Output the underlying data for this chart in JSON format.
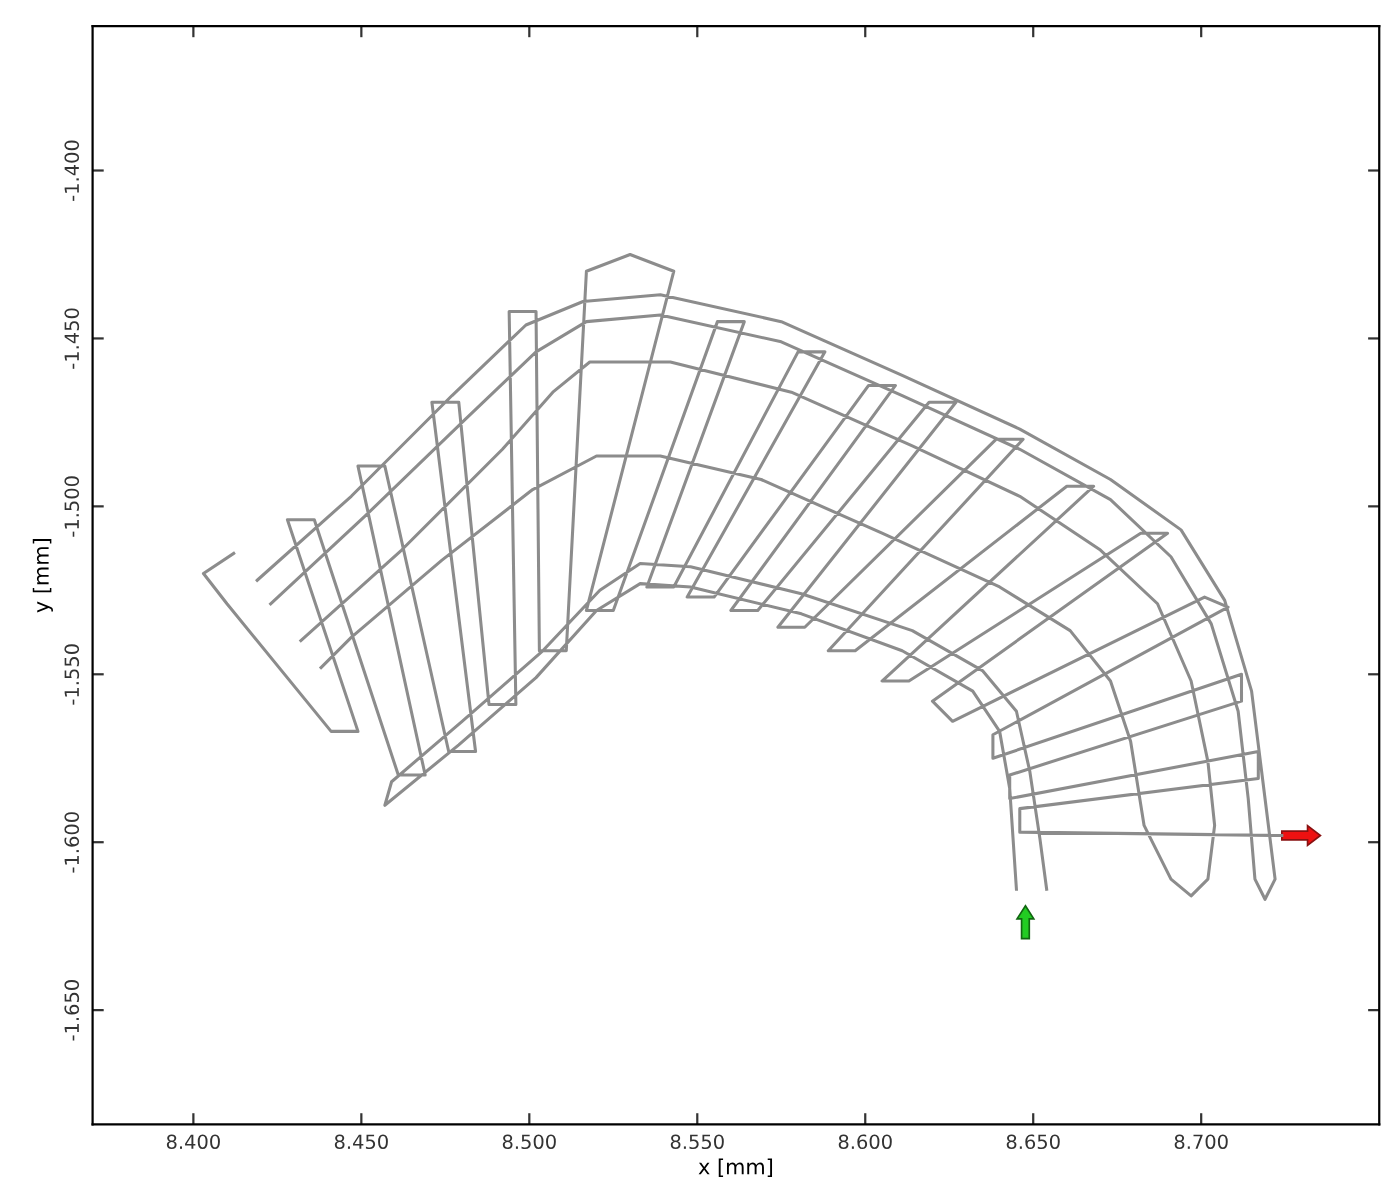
{
  "chart_data": {
    "type": "line",
    "xlabel": "x [mm]",
    "ylabel": "y [mm]",
    "xlim": [
      8.37,
      8.753
    ],
    "ylim": [
      -1.684,
      -1.357
    ],
    "xticks": [
      {
        "value": 8.4,
        "label": "8.400"
      },
      {
        "value": 8.45,
        "label": "8.450"
      },
      {
        "value": 8.5,
        "label": "8.500"
      },
      {
        "value": 8.55,
        "label": "8.550"
      },
      {
        "value": 8.6,
        "label": "8.600"
      },
      {
        "value": 8.65,
        "label": "8.650"
      },
      {
        "value": 8.7,
        "label": "8.700"
      }
    ],
    "yticks": [
      {
        "value": -1.4,
        "label": "-1.400"
      },
      {
        "value": -1.45,
        "label": "-1.450"
      },
      {
        "value": -1.5,
        "label": "-1.500"
      },
      {
        "value": -1.55,
        "label": "-1.550"
      },
      {
        "value": -1.6,
        "label": "-1.600"
      },
      {
        "value": -1.65,
        "label": "-1.650"
      }
    ],
    "line_style": "solid",
    "series": [
      {
        "color": "#8c8c8c",
        "x": [
          8.645,
          8.643,
          8.64,
          8.632,
          8.611,
          8.581,
          8.548,
          8.533,
          8.52,
          8.502,
          8.479,
          8.457,
          8.459,
          8.48,
          8.504,
          8.521,
          8.533,
          8.548,
          8.581,
          8.614,
          8.635,
          8.645,
          8.649,
          8.652,
          8.654,
          null,
          8.432,
          8.462,
          8.492,
          8.507,
          8.518,
          8.542,
          8.578,
          8.614,
          8.646,
          8.67,
          8.687,
          8.697,
          8.702,
          8.704,
          8.702,
          8.697,
          8.691,
          8.685,
          8.683,
          8.679,
          8.673,
          8.661,
          8.64,
          8.605,
          8.569,
          8.539,
          8.52,
          8.501,
          8.474,
          8.447,
          8.438,
          null,
          8.419,
          8.447,
          8.477,
          8.499,
          8.516,
          8.539,
          8.575,
          8.611,
          8.646,
          8.673,
          8.694,
          8.707,
          8.715,
          8.719,
          8.722,
          8.719,
          8.716,
          8.714,
          8.711,
          8.703,
          8.691,
          8.673,
          8.646,
          8.611,
          8.575,
          8.539,
          8.517,
          8.502,
          8.481,
          8.451,
          8.423,
          null,
          8.412,
          8.403,
          8.41,
          8.441,
          8.449,
          8.428,
          8.436,
          8.461,
          8.469,
          8.449,
          8.457,
          8.476,
          8.484,
          8.471,
          8.479,
          8.488,
          8.496,
          8.494,
          8.502,
          8.503,
          8.511,
          8.517,
          8.53,
          8.543,
          8.517,
          8.525,
          8.556,
          8.564,
          8.535,
          8.543,
          8.58,
          8.588,
          8.547,
          8.555,
          8.601,
          8.609,
          8.56,
          8.568,
          8.619,
          8.627,
          8.574,
          8.582,
          8.639,
          8.647,
          8.589,
          8.597,
          8.66,
          8.668,
          8.605,
          8.613,
          8.682,
          8.69,
          8.62,
          8.626,
          8.701,
          8.708,
          8.638,
          8.638,
          8.712,
          8.712,
          8.643,
          8.643,
          8.717,
          8.717,
          8.646,
          8.646,
          8.724
        ],
        "values": [
          -1.614,
          -1.584,
          -1.567,
          -1.555,
          -1.543,
          -1.532,
          -1.524,
          -1.523,
          -1.531,
          -1.551,
          -1.571,
          -1.589,
          -1.582,
          -1.564,
          -1.543,
          -1.525,
          -1.517,
          -1.518,
          -1.526,
          -1.537,
          -1.549,
          -1.561,
          -1.579,
          -1.599,
          -1.614,
          null,
          -1.54,
          -1.513,
          -1.483,
          -1.466,
          -1.457,
          -1.457,
          -1.466,
          -1.482,
          -1.497,
          -1.513,
          -1.529,
          -1.552,
          -1.576,
          -1.595,
          -1.611,
          -1.616,
          -1.611,
          -1.599,
          -1.595,
          -1.57,
          -1.552,
          -1.537,
          -1.524,
          -1.508,
          -1.492,
          -1.485,
          -1.485,
          -1.495,
          -1.516,
          -1.539,
          -1.548,
          null,
          -1.522,
          -1.497,
          -1.467,
          -1.446,
          -1.439,
          -1.437,
          -1.445,
          -1.461,
          -1.477,
          -1.492,
          -1.507,
          -1.528,
          -1.555,
          -1.587,
          -1.611,
          -1.617,
          -1.611,
          -1.587,
          -1.561,
          -1.535,
          -1.515,
          -1.498,
          -1.483,
          -1.467,
          -1.451,
          -1.443,
          -1.445,
          -1.454,
          -1.474,
          -1.503,
          -1.529,
          null,
          -1.514,
          -1.52,
          -1.529,
          -1.567,
          -1.567,
          -1.504,
          -1.504,
          -1.58,
          -1.58,
          -1.488,
          -1.488,
          -1.573,
          -1.573,
          -1.469,
          -1.469,
          -1.559,
          -1.559,
          -1.442,
          -1.442,
          -1.543,
          -1.543,
          -1.43,
          -1.425,
          -1.43,
          -1.531,
          -1.531,
          -1.445,
          -1.445,
          -1.524,
          -1.524,
          -1.454,
          -1.454,
          -1.527,
          -1.527,
          -1.464,
          -1.464,
          -1.531,
          -1.531,
          -1.469,
          -1.469,
          -1.536,
          -1.536,
          -1.48,
          -1.48,
          -1.543,
          -1.543,
          -1.494,
          -1.494,
          -1.552,
          -1.552,
          -1.508,
          -1.508,
          -1.558,
          -1.564,
          -1.527,
          -1.53,
          -1.568,
          -1.575,
          -1.55,
          -1.558,
          -1.58,
          -1.587,
          -1.573,
          -1.581,
          -1.59,
          -1.597,
          -1.598
        ]
      }
    ]
  }
}
